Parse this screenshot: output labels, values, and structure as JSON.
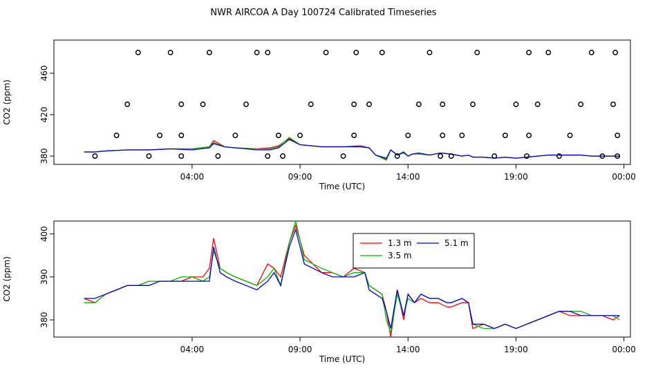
{
  "figure": {
    "title": "NWR AIRCOA A  Day 100724  Calibrated Timeseries"
  },
  "colors": {
    "s1": "#ff0000",
    "s2": "#00bb00",
    "s3": "#0000cc",
    "axis": "#000000",
    "points": "#000000"
  },
  "chart_data": [
    {
      "type": "line",
      "xlabel": "Time (UTC)",
      "ylabel": "CO2 (ppm)",
      "xlim": [
        -2.4,
        24.3
      ],
      "ylim": [
        372,
        492
      ],
      "xticks": [
        4,
        9,
        14,
        19,
        24
      ],
      "xtick_labels": [
        "04:00",
        "09:00",
        "14:00",
        "19:00",
        "00:00"
      ],
      "yticks": [
        380,
        420,
        460
      ],
      "yticks_labels": [
        "380",
        "420",
        "460"
      ],
      "lines": [
        {
          "name": "",
          "color": "#ff0000",
          "x": [
            -1.0,
            -0.5,
            0.0,
            1.0,
            2.0,
            3.0,
            4.0,
            4.8,
            5.0,
            5.5,
            6.0,
            7.0,
            7.6,
            8.0,
            8.5,
            9.0,
            9.5,
            10.0,
            11.0,
            11.8,
            12.2,
            12.5,
            13.0,
            13.2,
            13.5,
            13.8,
            14.0,
            14.2,
            14.5,
            15.0,
            15.5,
            16.0,
            16.5,
            16.8,
            17.0,
            17.5,
            18.0,
            18.5,
            19.0,
            19.5,
            20.0,
            20.5,
            21.0,
            21.5,
            22.0,
            22.5,
            23.0,
            23.5,
            23.8
          ],
          "y": [
            384,
            384,
            385,
            386,
            386,
            387,
            387,
            389,
            395,
            389,
            388,
            387,
            388,
            390,
            397,
            391,
            390,
            389,
            389,
            390,
            388,
            381,
            377,
            386,
            381,
            383,
            380,
            382,
            382,
            381,
            383,
            382,
            380,
            381,
            379,
            379,
            378,
            379,
            378,
            379,
            380,
            381,
            381,
            381,
            381,
            380,
            380,
            380,
            380
          ]
        },
        {
          "name": "",
          "color": "#00bb00",
          "x": [
            -1.0,
            -0.5,
            0.0,
            1.0,
            2.0,
            3.0,
            4.0,
            4.8,
            5.0,
            5.5,
            6.0,
            7.0,
            7.6,
            8.0,
            8.5,
            9.0,
            9.5,
            10.0,
            11.0,
            11.8,
            12.2,
            12.5,
            13.0,
            13.2,
            13.5,
            13.8,
            14.0,
            14.2,
            14.5,
            15.0,
            15.5,
            16.0,
            16.5,
            16.8,
            17.0,
            17.5,
            18.0,
            18.5,
            19.0,
            19.5,
            20.0,
            20.5,
            21.0,
            21.5,
            22.0,
            22.5,
            23.0,
            23.5,
            23.8
          ],
          "y": [
            384,
            384,
            385,
            386,
            386,
            387,
            387,
            389,
            393,
            389,
            388,
            387,
            387,
            389,
            398,
            391,
            390,
            389,
            389,
            389,
            388,
            381,
            376,
            386,
            381,
            383,
            380,
            382,
            382,
            381,
            383,
            382,
            380,
            381,
            379,
            379,
            378,
            379,
            378,
            379,
            380,
            381,
            381,
            381,
            381,
            380,
            380,
            380,
            380
          ]
        },
        {
          "name": "",
          "color": "#0000cc",
          "x": [
            -1.0,
            -0.5,
            0.0,
            1.0,
            2.0,
            3.0,
            4.0,
            4.8,
            5.0,
            5.5,
            6.0,
            7.0,
            7.6,
            8.0,
            8.5,
            9.0,
            9.5,
            10.0,
            11.0,
            11.8,
            12.2,
            12.5,
            13.0,
            13.2,
            13.5,
            13.8,
            14.0,
            14.2,
            14.5,
            15.0,
            15.5,
            16.0,
            16.5,
            16.8,
            17.0,
            17.5,
            18.0,
            18.5,
            19.0,
            19.5,
            20.0,
            20.5,
            21.0,
            21.5,
            22.0,
            22.5,
            23.0,
            23.5,
            23.8
          ],
          "y": [
            384,
            384,
            385,
            386,
            386,
            387,
            386,
            388,
            392,
            389,
            388,
            386,
            386,
            388,
            396,
            391,
            390,
            389,
            389,
            389,
            388,
            381,
            378,
            386,
            381,
            384,
            380,
            382,
            383,
            381,
            383,
            382,
            380,
            381,
            379,
            379,
            378,
            379,
            378,
            379,
            380,
            381,
            381,
            381,
            381,
            380,
            380,
            380,
            380
          ]
        }
      ],
      "points": {
        "x": [
          -0.5,
          0.5,
          1.0,
          1.5,
          2.0,
          2.5,
          3.0,
          3.5,
          3.5,
          3.5,
          4.5,
          4.8,
          5.2,
          6.0,
          6.5,
          7.0,
          7.5,
          7.5,
          8.0,
          8.2,
          9.0,
          9.5,
          10.2,
          11.0,
          11.5,
          11.5,
          11.6,
          12.2,
          12.8,
          13.5,
          14.0,
          14.5,
          15.0,
          15.5,
          15.6,
          15.6,
          16.0,
          16.5,
          17.0,
          17.2,
          18.0,
          18.5,
          19.0,
          19.5,
          19.6,
          19.6,
          20.0,
          20.5,
          21.0,
          21.5,
          22.0,
          22.5,
          23.0,
          23.5,
          23.6,
          23.7,
          23.7
        ],
        "y": [
          380,
          400,
          430,
          480,
          380,
          400,
          480,
          380,
          400,
          430,
          430,
          480,
          380,
          400,
          430,
          480,
          380,
          480,
          400,
          380,
          400,
          430,
          480,
          380,
          400,
          430,
          480,
          430,
          480,
          380,
          400,
          430,
          480,
          380,
          400,
          430,
          380,
          400,
          430,
          480,
          380,
          400,
          430,
          380,
          400,
          480,
          430,
          480,
          380,
          400,
          430,
          480,
          380,
          430,
          480,
          400,
          380
        ]
      }
    },
    {
      "type": "line",
      "xlabel": "Time (UTC)",
      "ylabel": "CO2 (ppm)",
      "xlim": [
        -2.4,
        24.3
      ],
      "ylim": [
        376,
        403
      ],
      "xticks": [
        4,
        9,
        14,
        19,
        24
      ],
      "xtick_labels": [
        "04:00",
        "09:00",
        "14:00",
        "19:00",
        "00:00"
      ],
      "yticks": [
        380,
        390,
        400
      ],
      "ytick_labels": [
        "380",
        "390",
        "400"
      ],
      "series": [
        {
          "name": "1.3 m",
          "color": "#ff0000",
          "x": [
            -1.0,
            -0.5,
            0.0,
            0.5,
            1.0,
            1.5,
            2.0,
            2.5,
            3.0,
            3.5,
            4.0,
            4.5,
            4.8,
            5.0,
            5.3,
            5.6,
            6.0,
            6.5,
            7.0,
            7.5,
            7.8,
            8.1,
            8.5,
            8.8,
            9.2,
            9.6,
            10.0,
            10.5,
            11.0,
            11.5,
            12.0,
            12.2,
            12.5,
            12.8,
            13.0,
            13.2,
            13.5,
            13.8,
            14.0,
            14.3,
            14.6,
            15.0,
            15.4,
            15.8,
            16.0,
            16.5,
            16.8,
            17.0,
            17.5,
            18.0,
            18.5,
            19.0,
            19.5,
            20.0,
            20.5,
            21.0,
            21.5,
            22.0,
            22.5,
            23.0,
            23.5,
            23.8
          ],
          "y": [
            385,
            384,
            386,
            387,
            388,
            388,
            389,
            389,
            389,
            389,
            390,
            390,
            392,
            399,
            392,
            391,
            390,
            389,
            388,
            393,
            392,
            390,
            398,
            402,
            395,
            393,
            391,
            391,
            390,
            392,
            391,
            388,
            387,
            386,
            382,
            376,
            387,
            380,
            386,
            384,
            385,
            384,
            384,
            383,
            383,
            384,
            384,
            378,
            379,
            378,
            379,
            378,
            379,
            380,
            381,
            382,
            381,
            381,
            381,
            381,
            380,
            381
          ]
        },
        {
          "name": "3.5 m",
          "color": "#00bb00",
          "x": [
            -1.0,
            -0.5,
            0.0,
            0.5,
            1.0,
            1.5,
            2.0,
            2.5,
            3.0,
            3.5,
            4.0,
            4.5,
            4.8,
            5.0,
            5.3,
            5.6,
            6.0,
            6.5,
            7.0,
            7.5,
            7.8,
            8.1,
            8.5,
            8.8,
            9.2,
            9.6,
            10.0,
            10.5,
            11.0,
            11.5,
            12.0,
            12.2,
            12.5,
            12.8,
            13.0,
            13.2,
            13.5,
            13.8,
            14.0,
            14.3,
            14.6,
            15.0,
            15.4,
            15.8,
            16.0,
            16.5,
            16.8,
            17.0,
            17.5,
            18.0,
            18.5,
            19.0,
            19.5,
            20.0,
            20.5,
            21.0,
            21.5,
            22.0,
            22.5,
            23.0,
            23.5,
            23.8
          ],
          "y": [
            384,
            384,
            386,
            387,
            388,
            388,
            389,
            389,
            389,
            390,
            390,
            389,
            390,
            396,
            392,
            391,
            390,
            389,
            388,
            390,
            392,
            388,
            398,
            403,
            394,
            393,
            392,
            391,
            390,
            391,
            391,
            388,
            387,
            386,
            380,
            377,
            386,
            381,
            385,
            384,
            386,
            385,
            385,
            384,
            384,
            385,
            384,
            379,
            378,
            378,
            379,
            378,
            379,
            380,
            381,
            382,
            382,
            382,
            381,
            381,
            381,
            380
          ]
        },
        {
          "name": "5.1 m",
          "color": "#0000cc",
          "x": [
            -1.0,
            -0.5,
            0.0,
            0.5,
            1.0,
            1.5,
            2.0,
            2.5,
            3.0,
            3.5,
            4.0,
            4.5,
            4.8,
            5.0,
            5.3,
            5.6,
            6.0,
            6.5,
            7.0,
            7.5,
            7.8,
            8.1,
            8.5,
            8.8,
            9.2,
            9.6,
            10.0,
            10.5,
            11.0,
            11.5,
            12.0,
            12.2,
            12.5,
            12.8,
            13.0,
            13.2,
            13.5,
            13.8,
            14.0,
            14.3,
            14.6,
            15.0,
            15.4,
            15.8,
            16.0,
            16.5,
            16.8,
            17.0,
            17.5,
            18.0,
            18.5,
            19.0,
            19.5,
            20.0,
            20.5,
            21.0,
            21.5,
            22.0,
            22.5,
            23.0,
            23.5,
            23.8
          ],
          "y": [
            385,
            385,
            386,
            387,
            388,
            388,
            388,
            389,
            389,
            389,
            389,
            389,
            389,
            397,
            391,
            390,
            389,
            388,
            387,
            389,
            391,
            388,
            397,
            401,
            393,
            392,
            391,
            390,
            390,
            390,
            391,
            387,
            386,
            385,
            382,
            378,
            387,
            381,
            386,
            384,
            386,
            385,
            385,
            384,
            384,
            385,
            384,
            379,
            379,
            378,
            379,
            378,
            379,
            380,
            381,
            382,
            382,
            381,
            381,
            381,
            381,
            381
          ]
        }
      ],
      "legend": {
        "placement": "top-center"
      }
    }
  ]
}
